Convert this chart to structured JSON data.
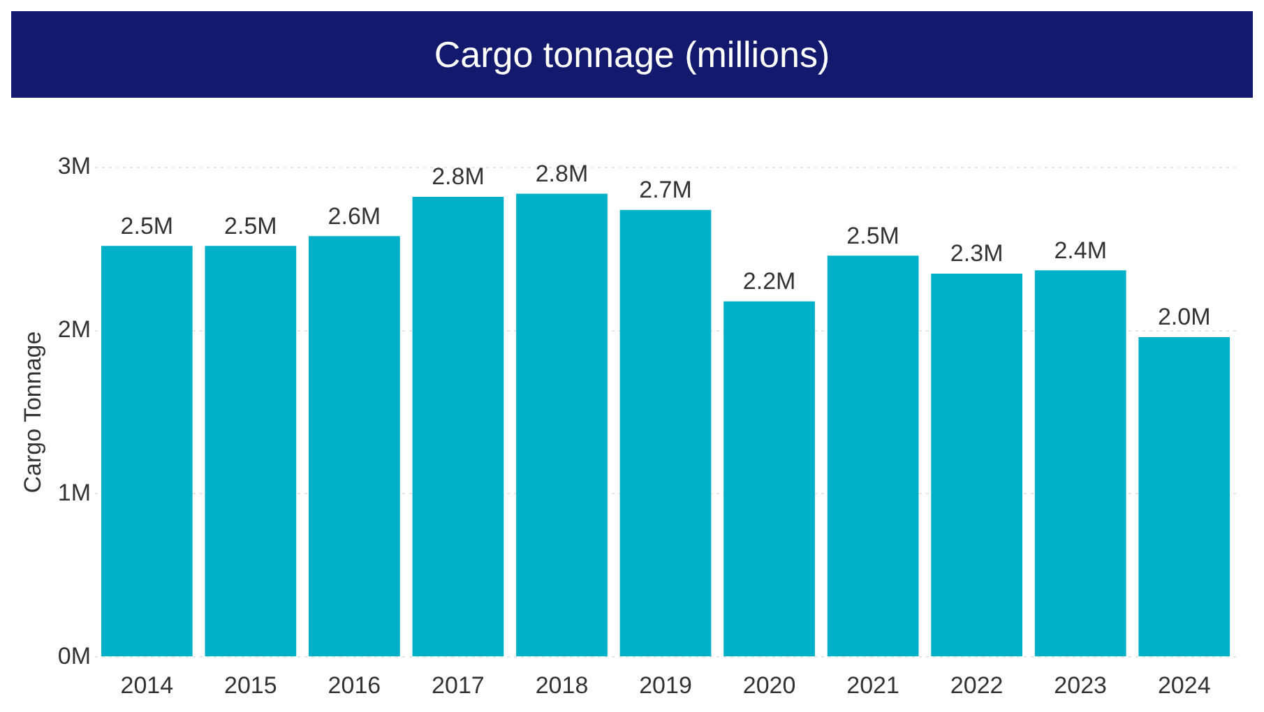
{
  "chart_data": {
    "type": "bar",
    "title": "Cargo tonnage (millions)",
    "ylabel": "Cargo Tonnage",
    "categories": [
      "2014",
      "2015",
      "2016",
      "2017",
      "2018",
      "2019",
      "2020",
      "2021",
      "2022",
      "2023",
      "2024"
    ],
    "values": [
      2.52,
      2.52,
      2.58,
      2.82,
      2.84,
      2.74,
      2.18,
      2.46,
      2.35,
      2.37,
      1.96
    ],
    "value_labels": [
      "2.5M",
      "2.5M",
      "2.6M",
      "2.8M",
      "2.8M",
      "2.7M",
      "2.2M",
      "2.5M",
      "2.3M",
      "2.4M",
      "2.0M"
    ],
    "color": "#00b0c8",
    "ylim": [
      0,
      3
    ],
    "yticks": [
      {
        "value": 0,
        "label": "0M"
      },
      {
        "value": 1,
        "label": "1M"
      },
      {
        "value": 2,
        "label": "2M"
      },
      {
        "value": 3,
        "label": "3M"
      }
    ],
    "grid": "y"
  }
}
